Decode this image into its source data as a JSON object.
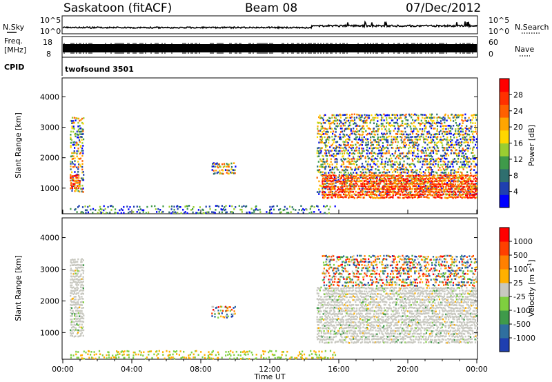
{
  "header": {
    "station": "Saskatoon (fitACF)",
    "beam": "Beam 08",
    "date": "07/Dec/2012"
  },
  "panels": {
    "noise": {
      "left_label": "N.Sky",
      "right_label": "N.Search",
      "left_ticks": [
        "10^5",
        "10^0"
      ],
      "right_ticks": [
        "10^5",
        "10^0"
      ]
    },
    "freq": {
      "left_label_1": "Freq.",
      "left_label_2": "[MHz]",
      "right_label": "Nave",
      "left_ticks": [
        "18",
        "8"
      ],
      "right_ticks": [
        "60",
        "0"
      ]
    },
    "cpid": {
      "label": "CPID",
      "value": "twofsound 3501"
    }
  },
  "chart_data": [
    {
      "type": "heatmap",
      "title": "",
      "xlabel": "",
      "ylabel": "Slant Range [km]",
      "x_range_hours": [
        0,
        24
      ],
      "ylim": [
        180,
        4600
      ],
      "yticks": [
        "1000",
        "2000",
        "3000",
        "4000"
      ],
      "colorbar": {
        "label": "Power [dB]",
        "ticks": [
          "4",
          "8",
          "12",
          "16",
          "20",
          "24",
          "28"
        ],
        "colors": [
          "#0000ff",
          "#1f3fb0",
          "#2f6f6f",
          "#3f9a4a",
          "#9acd32",
          "#ffd700",
          "#ffa500",
          "#ff6000",
          "#ff3000",
          "#ff0000"
        ]
      },
      "regions": [
        {
          "x0": 0.4,
          "x1": 1.2,
          "y0": 900,
          "y1": 3400,
          "level": "mixed"
        },
        {
          "x0": 0.4,
          "x1": 1.0,
          "y0": 1000,
          "y1": 1500,
          "level": "high"
        },
        {
          "x0": 0.4,
          "x1": 15.8,
          "y0": 200,
          "y1": 500,
          "level": "low"
        },
        {
          "x0": 8.6,
          "x1": 10.0,
          "y0": 1500,
          "y1": 1900,
          "level": "mid"
        },
        {
          "x0": 14.7,
          "x1": 24.0,
          "y0": 800,
          "y1": 3500,
          "level": "mixed"
        },
        {
          "x0": 15.0,
          "x1": 24.0,
          "y0": 700,
          "y1": 1500,
          "level": "high"
        }
      ]
    },
    {
      "type": "heatmap",
      "title": "",
      "xlabel": "Time UT",
      "ylabel": "Slant Range [km]",
      "x_range_hours": [
        0,
        24
      ],
      "ylim": [
        180,
        4600
      ],
      "xticks": [
        "00:00",
        "04:00",
        "08:00",
        "12:00",
        "16:00",
        "20:00",
        "00:00"
      ],
      "yticks": [
        "1000",
        "2000",
        "3000",
        "4000"
      ],
      "colorbar": {
        "label": "Velocity [m s^-1]",
        "ticks": [
          "1000",
          "500",
          "100",
          "25",
          "-25",
          "-100",
          "-500",
          "-1000"
        ],
        "colors": [
          "#1f3fb0",
          "#2f6f9f",
          "#3f9a4a",
          "#7fcf3f",
          "#c8c8c0",
          "#ffb000",
          "#ff8000",
          "#ff4000",
          "#ff0000"
        ]
      },
      "regions": [
        {
          "x0": 0.4,
          "x1": 1.2,
          "y0": 900,
          "y1": 3400,
          "level": "ground"
        },
        {
          "x0": 0.4,
          "x1": 15.8,
          "y0": 200,
          "y1": 500,
          "level": "low"
        },
        {
          "x0": 8.6,
          "x1": 10.0,
          "y0": 1500,
          "y1": 1900,
          "level": "mixed"
        },
        {
          "x0": 14.7,
          "x1": 24.0,
          "y0": 700,
          "y1": 2500,
          "level": "ground"
        },
        {
          "x0": 15.0,
          "x1": 24.0,
          "y0": 2500,
          "y1": 3500,
          "level": "mixed"
        }
      ]
    }
  ]
}
